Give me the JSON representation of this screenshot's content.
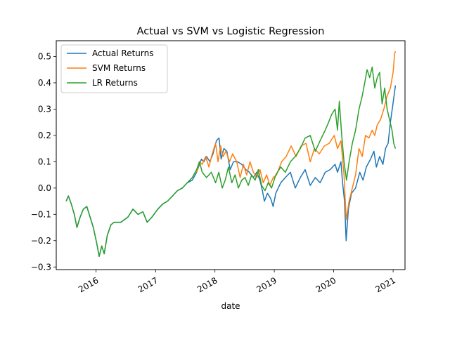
{
  "chart_data": {
    "type": "line",
    "title": "Actual vs SVM vs Logistic Regression",
    "xlabel": "date",
    "ylabel": "",
    "x_axis": "date",
    "xlim": [
      "2015-05-01",
      "2021-03-15"
    ],
    "ylim": [
      -0.31,
      0.56
    ],
    "x_ticks": [
      {
        "date": "2016-01-01",
        "label": "2016"
      },
      {
        "date": "2017-01-01",
        "label": "2017"
      },
      {
        "date": "2018-01-01",
        "label": "2018"
      },
      {
        "date": "2019-01-01",
        "label": "2019"
      },
      {
        "date": "2020-01-01",
        "label": "2020"
      },
      {
        "date": "2021-01-01",
        "label": "2021"
      }
    ],
    "y_ticks": [
      {
        "value": -0.3,
        "label": "−0.3"
      },
      {
        "value": -0.2,
        "label": "−0.2"
      },
      {
        "value": -0.1,
        "label": "−0.1"
      },
      {
        "value": 0.0,
        "label": "0.0"
      },
      {
        "value": 0.1,
        "label": "0.1"
      },
      {
        "value": 0.2,
        "label": "0.2"
      },
      {
        "value": 0.3,
        "label": "0.3"
      },
      {
        "value": 0.4,
        "label": "0.4"
      },
      {
        "value": 0.5,
        "label": "0.5"
      }
    ],
    "grid": false,
    "legend_position": "top-left",
    "series": [
      {
        "name": "Actual Returns",
        "color": "#1f77b4",
        "points": [
          [
            "2015-07-01",
            -0.05
          ],
          [
            "2015-07-15",
            -0.03
          ],
          [
            "2015-08-01",
            -0.06
          ],
          [
            "2015-08-20",
            -0.1
          ],
          [
            "2015-09-05",
            -0.15
          ],
          [
            "2015-09-25",
            -0.11
          ],
          [
            "2015-10-15",
            -0.08
          ],
          [
            "2015-11-05",
            -0.07
          ],
          [
            "2015-11-25",
            -0.11
          ],
          [
            "2015-12-15",
            -0.15
          ],
          [
            "2016-01-05",
            -0.21
          ],
          [
            "2016-01-20",
            -0.26
          ],
          [
            "2016-02-05",
            -0.22
          ],
          [
            "2016-02-20",
            -0.25
          ],
          [
            "2016-03-10",
            -0.18
          ],
          [
            "2016-04-01",
            -0.14
          ],
          [
            "2016-04-20",
            -0.13
          ],
          [
            "2016-06-01",
            -0.13
          ],
          [
            "2016-07-15",
            -0.11
          ],
          [
            "2016-08-15",
            -0.08
          ],
          [
            "2016-09-15",
            -0.1
          ],
          [
            "2016-10-15",
            -0.09
          ],
          [
            "2016-11-10",
            -0.13
          ],
          [
            "2016-12-10",
            -0.11
          ],
          [
            "2017-01-15",
            -0.08
          ],
          [
            "2017-02-15",
            -0.06
          ],
          [
            "2017-03-15",
            -0.05
          ],
          [
            "2017-04-15",
            -0.03
          ],
          [
            "2017-05-15",
            -0.01
          ],
          [
            "2017-06-15",
            0.0
          ],
          [
            "2017-07-15",
            0.02
          ],
          [
            "2017-08-15",
            0.03
          ],
          [
            "2017-09-10",
            0.06
          ],
          [
            "2017-09-28",
            0.09
          ],
          [
            "2017-10-10",
            0.11
          ],
          [
            "2017-10-25",
            0.1
          ],
          [
            "2017-11-10",
            0.12
          ],
          [
            "2017-12-01",
            0.1
          ],
          [
            "2017-12-20",
            0.13
          ],
          [
            "2018-01-10",
            0.18
          ],
          [
            "2018-01-26",
            0.19
          ],
          [
            "2018-02-08",
            0.11
          ],
          [
            "2018-02-25",
            0.15
          ],
          [
            "2018-03-15",
            0.14
          ],
          [
            "2018-04-05",
            0.07
          ],
          [
            "2018-04-25",
            0.1
          ],
          [
            "2018-05-20",
            0.1
          ],
          [
            "2018-06-15",
            0.09
          ],
          [
            "2018-07-10",
            0.07
          ],
          [
            "2018-08-01",
            0.06
          ],
          [
            "2018-08-25",
            0.04
          ],
          [
            "2018-09-15",
            0.06
          ],
          [
            "2018-10-05",
            0.03
          ],
          [
            "2018-10-20",
            -0.01
          ],
          [
            "2018-11-01",
            -0.05
          ],
          [
            "2018-11-20",
            -0.02
          ],
          [
            "2018-12-10",
            -0.04
          ],
          [
            "2018-12-25",
            -0.07
          ],
          [
            "2019-01-10",
            -0.02
          ],
          [
            "2019-02-10",
            0.02
          ],
          [
            "2019-03-10",
            0.04
          ],
          [
            "2019-04-10",
            0.06
          ],
          [
            "2019-05-10",
            0.0
          ],
          [
            "2019-06-10",
            0.04
          ],
          [
            "2019-07-10",
            0.07
          ],
          [
            "2019-08-10",
            0.01
          ],
          [
            "2019-09-10",
            0.04
          ],
          [
            "2019-10-10",
            0.02
          ],
          [
            "2019-11-10",
            0.06
          ],
          [
            "2019-12-10",
            0.07
          ],
          [
            "2020-01-10",
            0.09
          ],
          [
            "2020-01-25",
            0.06
          ],
          [
            "2020-02-15",
            0.1
          ],
          [
            "2020-02-25",
            0.02
          ],
          [
            "2020-03-08",
            -0.05
          ],
          [
            "2020-03-18",
            -0.2
          ],
          [
            "2020-04-01",
            -0.08
          ],
          [
            "2020-04-20",
            -0.02
          ],
          [
            "2020-05-15",
            0.0
          ],
          [
            "2020-06-10",
            0.06
          ],
          [
            "2020-06-30",
            0.03
          ],
          [
            "2020-07-20",
            0.08
          ],
          [
            "2020-08-15",
            0.11
          ],
          [
            "2020-09-05",
            0.14
          ],
          [
            "2020-09-20",
            0.08
          ],
          [
            "2020-10-10",
            0.12
          ],
          [
            "2020-10-30",
            0.09
          ],
          [
            "2020-11-15",
            0.15
          ],
          [
            "2020-12-01",
            0.17
          ],
          [
            "2020-12-15",
            0.25
          ],
          [
            "2020-12-31",
            0.32
          ],
          [
            "2021-01-15",
            0.39
          ]
        ]
      },
      {
        "name": "SVM Returns",
        "color": "#ff7f0e",
        "points": [
          [
            "2017-09-10",
            0.06
          ],
          [
            "2017-09-28",
            0.1
          ],
          [
            "2017-10-15",
            0.09
          ],
          [
            "2017-11-05",
            0.12
          ],
          [
            "2017-11-25",
            0.08
          ],
          [
            "2017-12-15",
            0.13
          ],
          [
            "2018-01-05",
            0.17
          ],
          [
            "2018-01-20",
            0.1
          ],
          [
            "2018-02-05",
            0.16
          ],
          [
            "2018-02-20",
            0.12
          ],
          [
            "2018-03-10",
            0.14
          ],
          [
            "2018-04-01",
            0.1
          ],
          [
            "2018-04-20",
            0.13
          ],
          [
            "2018-05-15",
            0.1
          ],
          [
            "2018-06-05",
            0.04
          ],
          [
            "2018-06-25",
            0.09
          ],
          [
            "2018-07-15",
            0.05
          ],
          [
            "2018-08-05",
            0.1
          ],
          [
            "2018-08-25",
            0.06
          ],
          [
            "2018-09-15",
            0.04
          ],
          [
            "2018-10-05",
            0.07
          ],
          [
            "2018-10-25",
            0.02
          ],
          [
            "2018-11-15",
            0.05
          ],
          [
            "2018-12-05",
            0.01
          ],
          [
            "2018-12-25",
            0.04
          ],
          [
            "2019-01-15",
            0.05
          ],
          [
            "2019-02-15",
            0.1
          ],
          [
            "2019-03-15",
            0.12
          ],
          [
            "2019-04-15",
            0.16
          ],
          [
            "2019-05-15",
            0.12
          ],
          [
            "2019-06-15",
            0.16
          ],
          [
            "2019-07-15",
            0.17
          ],
          [
            "2019-08-10",
            0.1
          ],
          [
            "2019-09-05",
            0.15
          ],
          [
            "2019-10-05",
            0.13
          ],
          [
            "2019-11-05",
            0.16
          ],
          [
            "2019-12-05",
            0.17
          ],
          [
            "2020-01-05",
            0.2
          ],
          [
            "2020-01-25",
            0.15
          ],
          [
            "2020-02-15",
            0.18
          ],
          [
            "2020-03-05",
            0.05
          ],
          [
            "2020-03-18",
            -0.12
          ],
          [
            "2020-04-05",
            -0.05
          ],
          [
            "2020-04-25",
            0.0
          ],
          [
            "2020-05-15",
            0.05
          ],
          [
            "2020-06-05",
            0.15
          ],
          [
            "2020-06-25",
            0.12
          ],
          [
            "2020-07-15",
            0.2
          ],
          [
            "2020-08-05",
            0.19
          ],
          [
            "2020-08-25",
            0.22
          ],
          [
            "2020-09-10",
            0.2
          ],
          [
            "2020-09-25",
            0.24
          ],
          [
            "2020-10-15",
            0.26
          ],
          [
            "2020-11-05",
            0.3
          ],
          [
            "2020-11-25",
            0.35
          ],
          [
            "2020-12-15",
            0.38
          ],
          [
            "2021-01-01",
            0.44
          ],
          [
            "2021-01-10",
            0.51
          ],
          [
            "2021-01-15",
            0.52
          ]
        ]
      },
      {
        "name": "LR Returns",
        "color": "#2ca02c",
        "points": [
          [
            "2015-07-01",
            -0.05
          ],
          [
            "2015-07-15",
            -0.03
          ],
          [
            "2015-08-01",
            -0.06
          ],
          [
            "2015-08-20",
            -0.1
          ],
          [
            "2015-09-05",
            -0.15
          ],
          [
            "2015-09-25",
            -0.11
          ],
          [
            "2015-10-15",
            -0.08
          ],
          [
            "2015-11-05",
            -0.07
          ],
          [
            "2015-11-25",
            -0.11
          ],
          [
            "2015-12-15",
            -0.15
          ],
          [
            "2016-01-05",
            -0.21
          ],
          [
            "2016-01-20",
            -0.26
          ],
          [
            "2016-02-05",
            -0.22
          ],
          [
            "2016-02-20",
            -0.25
          ],
          [
            "2016-03-10",
            -0.18
          ],
          [
            "2016-04-01",
            -0.14
          ],
          [
            "2016-04-20",
            -0.13
          ],
          [
            "2016-06-01",
            -0.13
          ],
          [
            "2016-07-15",
            -0.11
          ],
          [
            "2016-08-15",
            -0.08
          ],
          [
            "2016-09-15",
            -0.1
          ],
          [
            "2016-10-15",
            -0.09
          ],
          [
            "2016-11-10",
            -0.13
          ],
          [
            "2016-12-10",
            -0.11
          ],
          [
            "2017-01-15",
            -0.08
          ],
          [
            "2017-02-15",
            -0.06
          ],
          [
            "2017-03-15",
            -0.05
          ],
          [
            "2017-04-15",
            -0.03
          ],
          [
            "2017-05-15",
            -0.01
          ],
          [
            "2017-06-15",
            0.0
          ],
          [
            "2017-07-15",
            0.02
          ],
          [
            "2017-08-15",
            0.04
          ],
          [
            "2017-09-10",
            0.07
          ],
          [
            "2017-09-28",
            0.1
          ],
          [
            "2017-10-15",
            0.06
          ],
          [
            "2017-11-10",
            0.04
          ],
          [
            "2017-12-10",
            0.06
          ],
          [
            "2018-01-05",
            0.02
          ],
          [
            "2018-01-25",
            0.06
          ],
          [
            "2018-02-15",
            0.0
          ],
          [
            "2018-03-05",
            0.03
          ],
          [
            "2018-03-25",
            0.08
          ],
          [
            "2018-04-15",
            0.02
          ],
          [
            "2018-05-05",
            0.05
          ],
          [
            "2018-05-25",
            0.0
          ],
          [
            "2018-06-15",
            0.03
          ],
          [
            "2018-07-05",
            0.04
          ],
          [
            "2018-07-25",
            0.01
          ],
          [
            "2018-08-15",
            0.05
          ],
          [
            "2018-09-05",
            0.03
          ],
          [
            "2018-09-25",
            0.07
          ],
          [
            "2018-10-15",
            0.01
          ],
          [
            "2018-11-05",
            -0.01
          ],
          [
            "2018-11-25",
            0.02
          ],
          [
            "2018-12-15",
            0.0
          ],
          [
            "2019-01-10",
            0.05
          ],
          [
            "2019-02-10",
            0.08
          ],
          [
            "2019-03-10",
            0.06
          ],
          [
            "2019-04-10",
            0.1
          ],
          [
            "2019-05-10",
            0.12
          ],
          [
            "2019-06-10",
            0.15
          ],
          [
            "2019-07-10",
            0.19
          ],
          [
            "2019-08-10",
            0.2
          ],
          [
            "2019-09-10",
            0.14
          ],
          [
            "2019-10-10",
            0.18
          ],
          [
            "2019-11-10",
            0.22
          ],
          [
            "2019-12-01",
            0.25
          ],
          [
            "2019-12-20",
            0.28
          ],
          [
            "2020-01-10",
            0.3
          ],
          [
            "2020-01-25",
            0.22
          ],
          [
            "2020-02-05",
            0.33
          ],
          [
            "2020-02-20",
            0.2
          ],
          [
            "2020-03-05",
            0.1
          ],
          [
            "2020-03-20",
            0.03
          ],
          [
            "2020-04-05",
            0.1
          ],
          [
            "2020-04-25",
            0.17
          ],
          [
            "2020-05-15",
            0.22
          ],
          [
            "2020-06-05",
            0.3
          ],
          [
            "2020-06-25",
            0.35
          ],
          [
            "2020-07-10",
            0.4
          ],
          [
            "2020-07-25",
            0.45
          ],
          [
            "2020-08-10",
            0.42
          ],
          [
            "2020-08-25",
            0.46
          ],
          [
            "2020-09-10",
            0.38
          ],
          [
            "2020-09-25",
            0.42
          ],
          [
            "2020-10-10",
            0.44
          ],
          [
            "2020-10-25",
            0.32
          ],
          [
            "2020-11-10",
            0.38
          ],
          [
            "2020-11-25",
            0.3
          ],
          [
            "2020-12-10",
            0.26
          ],
          [
            "2020-12-25",
            0.22
          ],
          [
            "2021-01-05",
            0.17
          ],
          [
            "2021-01-15",
            0.15
          ]
        ]
      }
    ]
  }
}
